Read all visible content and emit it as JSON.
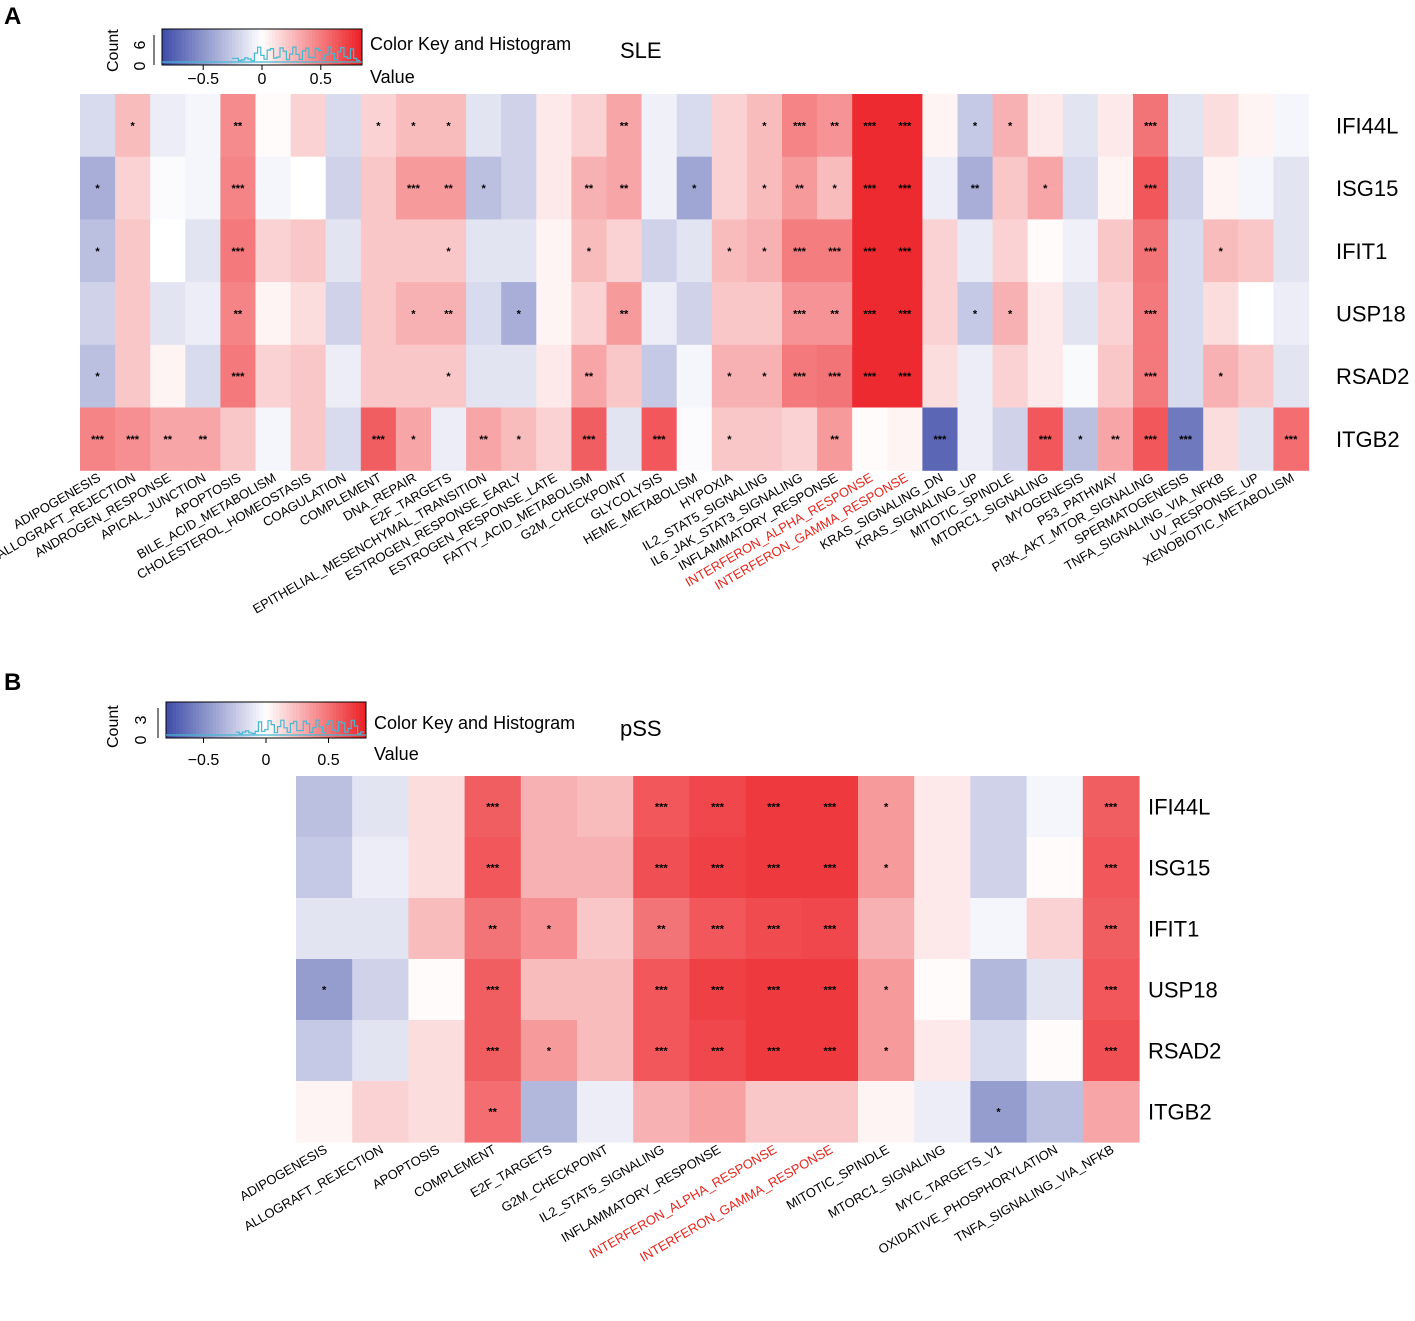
{
  "colors": {
    "low": "#3e4ca8",
    "mid": "#ffffff",
    "high": "#ec1f24",
    "highlight": "#e3261e",
    "histogram": "#46b8d2"
  },
  "chart_data": [
    {
      "panel": "A",
      "type": "heatmap",
      "title": "SLE",
      "key": {
        "label": "Color Key and Histogram",
        "value_label": "Value",
        "count_label": "Count",
        "count_tick": "6",
        "count_tick_zero": "0",
        "ticks": [
          "−0.5",
          "0",
          "0.5"
        ],
        "tick_values": [
          -0.5,
          0,
          0.5
        ],
        "range": [
          -0.85,
          0.85
        ]
      },
      "rows": [
        "IFI44L",
        "ISG15",
        "IFIT1",
        "USP18",
        "RSAD2",
        "ITGB2"
      ],
      "columns": [
        "ADIPOGENESIS",
        "ALLOGRAFT_REJECTION",
        "ANDROGEN_RESPONSE",
        "APICAL_JUNCTION",
        "APOPTOSIS",
        "BILE_ACID_METABOLISM",
        "CHOLESTEROL_HOMEOSTASIS",
        "COAGULATION",
        "COMPLEMENT",
        "DNA_REPAIR",
        "E2F_TARGETS",
        "EPITHELIAL_MESENCHYMAL_TRANSITION",
        "ESTROGEN_RESPONSE_EARLY",
        "ESTROGEN_RESPONSE_LATE",
        "FATTY_ACID_METABOLISM",
        "G2M_CHECKPOINT",
        "GLYCOLYSIS",
        "HEME_METABOLISM",
        "HYPOXIA",
        "IL2_STAT5_SIGNALING",
        "IL6_JAK_STAT3_SIGNALING",
        "INFLAMMATORY_RESPONSE",
        "INTERFERON_ALPHA_RESPONSE",
        "INTERFERON_GAMMA_RESPONSE",
        "KRAS_SIGNALING_DN",
        "KRAS_SIGNALING_UP",
        "MITOTIC_SPINDLE",
        "MTORC1_SIGNALING",
        "MYOGENESIS",
        "P53_PATHWAY",
        "PI3K_AKT_MTOR_SIGNALING",
        "SPERMATOGENESIS",
        "TNFA_SIGNALING_VIA_NFKB",
        "UV_RESPONSE_UP",
        "XENOBIOTIC_METABOLISM"
      ],
      "highlighted_columns": [
        "INTERFERON_ALPHA_RESPONSE",
        "INTERFERON_GAMMA_RESPONSE"
      ],
      "values": [
        [
          -0.2,
          0.3,
          -0.1,
          -0.05,
          0.52,
          0.02,
          0.2,
          -0.2,
          0.2,
          0.3,
          0.3,
          -0.15,
          -0.25,
          0.1,
          0.2,
          0.4,
          -0.08,
          -0.2,
          0.2,
          0.3,
          0.55,
          0.48,
          0.95,
          0.95,
          0.05,
          -0.3,
          0.35,
          0.1,
          -0.15,
          0.1,
          0.62,
          -0.15,
          0.15,
          0.05,
          -0.05
        ],
        [
          -0.45,
          0.2,
          -0.02,
          -0.05,
          0.55,
          -0.05,
          0.0,
          -0.25,
          0.25,
          0.45,
          0.45,
          -0.35,
          -0.25,
          0.1,
          0.35,
          0.4,
          -0.08,
          -0.5,
          0.2,
          0.3,
          0.45,
          0.3,
          0.95,
          0.95,
          -0.1,
          -0.45,
          0.25,
          0.4,
          -0.2,
          0.05,
          0.75,
          -0.25,
          0.05,
          -0.05,
          -0.15
        ],
        [
          -0.35,
          0.25,
          0.0,
          -0.15,
          0.6,
          0.2,
          0.25,
          -0.15,
          0.25,
          0.25,
          0.25,
          -0.15,
          -0.15,
          0.05,
          0.3,
          0.2,
          -0.25,
          -0.15,
          0.3,
          0.35,
          0.58,
          0.58,
          0.95,
          0.95,
          0.2,
          -0.12,
          0.2,
          0.02,
          -0.08,
          0.25,
          0.62,
          -0.2,
          0.3,
          0.25,
          -0.15
        ],
        [
          -0.25,
          0.25,
          -0.15,
          -0.1,
          0.55,
          0.05,
          0.15,
          -0.25,
          0.25,
          0.35,
          0.35,
          -0.2,
          -0.45,
          0.05,
          0.2,
          0.45,
          -0.1,
          -0.25,
          0.25,
          0.25,
          0.48,
          0.48,
          0.95,
          0.95,
          0.2,
          -0.3,
          0.35,
          0.1,
          -0.15,
          0.2,
          0.6,
          -0.2,
          0.15,
          0.0,
          -0.1
        ],
        [
          -0.35,
          0.25,
          0.05,
          -0.2,
          0.6,
          0.2,
          0.25,
          -0.1,
          0.25,
          0.25,
          0.25,
          -0.15,
          -0.15,
          0.1,
          0.4,
          0.25,
          -0.3,
          -0.05,
          0.35,
          0.35,
          0.6,
          0.62,
          0.95,
          0.95,
          0.15,
          -0.1,
          0.2,
          0.1,
          -0.03,
          0.25,
          0.6,
          -0.2,
          0.35,
          0.25,
          -0.15
        ],
        [
          0.55,
          0.5,
          0.4,
          0.4,
          0.25,
          -0.05,
          0.25,
          -0.2,
          0.72,
          0.4,
          -0.1,
          0.4,
          0.3,
          0.2,
          0.72,
          -0.15,
          0.75,
          -0.02,
          0.25,
          0.25,
          0.2,
          0.45,
          0.02,
          0.05,
          -0.85,
          -0.1,
          -0.25,
          0.75,
          -0.35,
          0.4,
          0.75,
          -0.75,
          0.15,
          -0.15,
          0.65
        ]
      ],
      "significance": [
        [
          "",
          "*",
          "",
          "",
          "**",
          "",
          "",
          "",
          "*",
          "*",
          "*",
          "",
          "",
          "",
          "",
          "**",
          "",
          "",
          "",
          "*",
          "***",
          "**",
          "***",
          "***",
          "",
          "*",
          "*",
          "",
          "",
          "",
          "***",
          "",
          "",
          "",
          ""
        ],
        [
          "*",
          "",
          "",
          "",
          "***",
          "",
          "",
          "",
          "",
          "***",
          "**",
          "*",
          "",
          "",
          "**",
          "**",
          "",
          "*",
          "",
          "*",
          "**",
          "*",
          "***",
          "***",
          "",
          "**",
          "",
          "*",
          "",
          "",
          "***",
          "",
          "",
          "",
          ""
        ],
        [
          "*",
          "",
          "",
          "",
          "***",
          "",
          "",
          "",
          "",
          "",
          "*",
          "",
          "",
          "",
          "*",
          "",
          "",
          "",
          "*",
          "*",
          "***",
          "***",
          "***",
          "***",
          "",
          "",
          "",
          "",
          "",
          "",
          "***",
          "",
          "*",
          "",
          ""
        ],
        [
          "",
          "",
          "",
          "",
          "**",
          "",
          "",
          "",
          "",
          "*",
          "**",
          "",
          "*",
          "",
          "",
          "**",
          "",
          "",
          "",
          "",
          "***",
          "**",
          "***",
          "***",
          "",
          "*",
          "*",
          "",
          "",
          "",
          "***",
          "",
          "",
          "",
          ""
        ],
        [
          "*",
          "",
          "",
          "",
          "***",
          "",
          "",
          "",
          "",
          "",
          "*",
          "",
          "",
          "",
          "**",
          "",
          "",
          "",
          "*",
          "*",
          "***",
          "***",
          "***",
          "***",
          "",
          "",
          "",
          "",
          "",
          "",
          "***",
          "",
          "*",
          "",
          ""
        ],
        [
          "***",
          "***",
          "**",
          "**",
          "",
          "",
          "",
          "",
          "***",
          "*",
          "",
          "**",
          "*",
          "",
          "***",
          "",
          "***",
          "",
          "*",
          "",
          "",
          "**",
          "",
          "",
          "***",
          "",
          "",
          "***",
          "*",
          "**",
          "***",
          "***",
          "",
          "",
          "***"
        ]
      ]
    },
    {
      "panel": "B",
      "type": "heatmap",
      "title": "pSS",
      "key": {
        "label": "Color Key and Histogram",
        "value_label": "Value",
        "count_label": "Count",
        "count_tick": "3",
        "count_tick_zero": "0",
        "ticks": [
          "−0.5",
          "0",
          "0.5"
        ],
        "tick_values": [
          -0.5,
          0,
          0.5
        ],
        "range": [
          -0.8,
          0.8
        ]
      },
      "rows": [
        "IFI44L",
        "ISG15",
        "IFIT1",
        "USP18",
        "RSAD2",
        "ITGB2"
      ],
      "columns": [
        "ADIPOGENESIS",
        "ALLOGRAFT_REJECTION",
        "APOPTOSIS",
        "COMPLEMENT",
        "E2F_TARGETS",
        "G2M_CHECKPOINT",
        "IL2_STAT5_SIGNALING",
        "INFLAMMATORY_RESPONSE",
        "INTERFERON_ALPHA_RESPONSE",
        "INTERFERON_GAMMA_RESPONSE",
        "MITOTIC_SPINDLE",
        "MTORC1_SIGNALING",
        "MYC_TARGETS_V1",
        "OXIDATIVE_PHOSPHORYLATION",
        "TNFA_SIGNALING_VIA_NFKB"
      ],
      "highlighted_columns": [
        "INTERFERON_ALPHA_RESPONSE",
        "INTERFERON_GAMMA_RESPONSE"
      ],
      "values": [
        [
          -0.35,
          -0.15,
          0.15,
          0.72,
          0.35,
          0.3,
          0.75,
          0.82,
          0.88,
          0.88,
          0.45,
          0.1,
          -0.25,
          -0.05,
          0.72
        ],
        [
          -0.3,
          -0.1,
          0.15,
          0.75,
          0.35,
          0.35,
          0.78,
          0.85,
          0.88,
          0.88,
          0.45,
          0.1,
          -0.25,
          0.02,
          0.75
        ],
        [
          -0.15,
          -0.15,
          0.3,
          0.62,
          0.5,
          0.25,
          0.62,
          0.75,
          0.8,
          0.82,
          0.35,
          0.1,
          -0.05,
          0.2,
          0.72
        ],
        [
          -0.55,
          -0.25,
          0.02,
          0.72,
          0.3,
          0.3,
          0.75,
          0.85,
          0.88,
          0.88,
          0.45,
          0.02,
          -0.4,
          -0.15,
          0.75
        ],
        [
          -0.3,
          -0.15,
          0.15,
          0.72,
          0.45,
          0.3,
          0.75,
          0.82,
          0.88,
          0.88,
          0.45,
          0.1,
          -0.2,
          0.02,
          0.78
        ],
        [
          0.05,
          0.2,
          0.15,
          0.65,
          -0.4,
          -0.1,
          0.35,
          0.42,
          0.25,
          0.25,
          0.05,
          -0.1,
          -0.55,
          -0.35,
          0.4
        ]
      ],
      "significance": [
        [
          "",
          "",
          "",
          "***",
          "",
          "",
          "***",
          "***",
          "***",
          "***",
          "*",
          "",
          "",
          "",
          "***"
        ],
        [
          "",
          "",
          "",
          "***",
          "",
          "",
          "***",
          "***",
          "***",
          "***",
          "*",
          "",
          "",
          "",
          "***"
        ],
        [
          "",
          "",
          "",
          "**",
          "*",
          "",
          "**",
          "***",
          "***",
          "***",
          "",
          "",
          "",
          "",
          "***"
        ],
        [
          "*",
          "",
          "",
          "***",
          "",
          "",
          "***",
          "***",
          "***",
          "***",
          "*",
          "",
          "",
          "",
          "***"
        ],
        [
          "",
          "",
          "",
          "***",
          "*",
          "",
          "***",
          "***",
          "***",
          "***",
          "*",
          "",
          "",
          "",
          "***"
        ],
        [
          "",
          "",
          "",
          "**",
          "",
          "",
          "",
          "",
          "",
          "",
          "",
          "",
          "*",
          "",
          ""
        ]
      ]
    }
  ]
}
